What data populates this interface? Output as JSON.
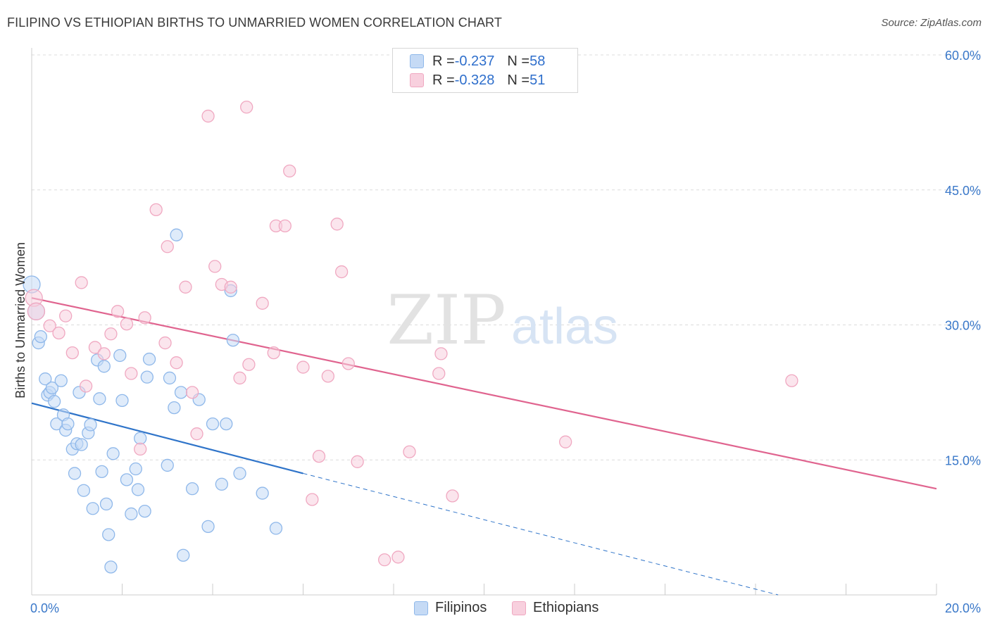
{
  "header": {
    "title": "FILIPINO VS ETHIOPIAN BIRTHS TO UNMARRIED WOMEN CORRELATION CHART",
    "source": "Source: ZipAtlas.com"
  },
  "watermark": {
    "zip": "ZIP",
    "atlas": "atlas"
  },
  "legend": {
    "series": [
      {
        "r_label": "R = ",
        "r_value": "-0.237",
        "n_label": "N = ",
        "n_value": "58"
      },
      {
        "r_label": "R = ",
        "r_value": "-0.328",
        "n_label": "N = ",
        "n_value": "51"
      }
    ]
  },
  "chart_data": {
    "type": "scatter",
    "xlabel": "",
    "ylabel": "Births to Unmarried Women",
    "xlim": [
      0,
      20
    ],
    "ylim": [
      0,
      60
    ],
    "x_tick_labels": [
      "0.0%",
      "20.0%"
    ],
    "y_ticks": [
      15,
      30,
      45,
      60
    ],
    "y_tick_labels": [
      "15.0%",
      "30.0%",
      "45.0%",
      "60.0%"
    ],
    "grid": "horizontal-dashed",
    "legend_position": "top-center and bottom",
    "series": [
      {
        "name": "Filipinos",
        "color": "#8fb8ea",
        "fill": "#c5daf5",
        "line_color": "#2f74c9",
        "trend": {
          "x0": 0,
          "y0": 21.3,
          "x1": 6.0,
          "y1": 13.5,
          "dashed_to_x": 16.5,
          "dashed_to_y": 0
        },
        "points": [
          [
            0.0,
            34.5
          ],
          [
            0.1,
            31.5
          ],
          [
            0.15,
            28.0
          ],
          [
            0.2,
            28.7
          ],
          [
            0.3,
            24.0
          ],
          [
            0.35,
            22.2
          ],
          [
            0.4,
            22.5
          ],
          [
            0.45,
            23.0
          ],
          [
            0.5,
            21.5
          ],
          [
            0.55,
            19.0
          ],
          [
            0.65,
            23.8
          ],
          [
            0.7,
            20.0
          ],
          [
            0.75,
            18.3
          ],
          [
            0.8,
            19.0
          ],
          [
            0.9,
            16.2
          ],
          [
            0.95,
            13.5
          ],
          [
            1.0,
            16.8
          ],
          [
            1.05,
            22.5
          ],
          [
            1.1,
            16.7
          ],
          [
            1.15,
            11.6
          ],
          [
            1.25,
            18.0
          ],
          [
            1.3,
            18.9
          ],
          [
            1.35,
            9.6
          ],
          [
            1.45,
            26.1
          ],
          [
            1.5,
            21.8
          ],
          [
            1.55,
            13.7
          ],
          [
            1.6,
            25.4
          ],
          [
            1.65,
            10.1
          ],
          [
            1.7,
            6.7
          ],
          [
            1.75,
            3.1
          ],
          [
            1.8,
            15.7
          ],
          [
            1.95,
            26.6
          ],
          [
            2.0,
            21.6
          ],
          [
            2.1,
            12.8
          ],
          [
            2.2,
            9.0
          ],
          [
            2.3,
            14.0
          ],
          [
            2.35,
            11.7
          ],
          [
            2.4,
            17.4
          ],
          [
            2.5,
            9.3
          ],
          [
            2.6,
            26.2
          ],
          [
            2.55,
            24.2
          ],
          [
            3.05,
            24.1
          ],
          [
            3.0,
            14.4
          ],
          [
            3.2,
            40.0
          ],
          [
            3.15,
            20.8
          ],
          [
            3.3,
            22.5
          ],
          [
            3.35,
            4.4
          ],
          [
            3.55,
            11.8
          ],
          [
            3.7,
            21.7
          ],
          [
            3.9,
            7.6
          ],
          [
            4.0,
            19.0
          ],
          [
            4.2,
            12.3
          ],
          [
            4.3,
            19.0
          ],
          [
            4.4,
            33.8
          ],
          [
            4.45,
            28.3
          ],
          [
            4.6,
            13.5
          ],
          [
            5.1,
            11.3
          ],
          [
            5.4,
            7.4
          ]
        ]
      },
      {
        "name": "Ethiopians",
        "color": "#f0a8c1",
        "fill": "#f8d0de",
        "line_color": "#e0648f",
        "trend": {
          "x0": 0,
          "y0": 33.0,
          "x1": 20.0,
          "y1": 11.8
        },
        "points": [
          [
            0.05,
            33.0
          ],
          [
            0.1,
            31.5
          ],
          [
            0.4,
            29.9
          ],
          [
            0.6,
            29.1
          ],
          [
            0.75,
            31.0
          ],
          [
            0.9,
            26.9
          ],
          [
            1.1,
            34.7
          ],
          [
            1.2,
            23.2
          ],
          [
            1.4,
            27.5
          ],
          [
            1.6,
            26.8
          ],
          [
            1.75,
            29.0
          ],
          [
            1.9,
            31.5
          ],
          [
            2.1,
            30.1
          ],
          [
            2.2,
            24.6
          ],
          [
            2.4,
            16.2
          ],
          [
            2.5,
            30.8
          ],
          [
            2.75,
            42.8
          ],
          [
            2.95,
            28.0
          ],
          [
            3.0,
            38.7
          ],
          [
            3.2,
            25.8
          ],
          [
            3.4,
            34.2
          ],
          [
            3.55,
            22.5
          ],
          [
            3.65,
            17.9
          ],
          [
            3.9,
            53.2
          ],
          [
            4.05,
            36.5
          ],
          [
            4.2,
            34.5
          ],
          [
            4.4,
            34.2
          ],
          [
            4.6,
            24.1
          ],
          [
            4.75,
            54.2
          ],
          [
            4.8,
            25.6
          ],
          [
            5.1,
            32.4
          ],
          [
            5.35,
            26.9
          ],
          [
            5.4,
            41.0
          ],
          [
            5.6,
            41.0
          ],
          [
            5.7,
            47.1
          ],
          [
            6.0,
            25.3
          ],
          [
            6.2,
            10.6
          ],
          [
            6.35,
            15.4
          ],
          [
            6.55,
            24.3
          ],
          [
            6.75,
            41.2
          ],
          [
            6.85,
            35.9
          ],
          [
            7.0,
            25.7
          ],
          [
            7.2,
            14.8
          ],
          [
            7.8,
            3.9
          ],
          [
            8.1,
            4.2
          ],
          [
            8.35,
            15.9
          ],
          [
            9.0,
            24.6
          ],
          [
            9.05,
            26.8
          ],
          [
            9.3,
            11.0
          ],
          [
            11.8,
            17.0
          ],
          [
            16.8,
            23.8
          ]
        ]
      }
    ]
  }
}
